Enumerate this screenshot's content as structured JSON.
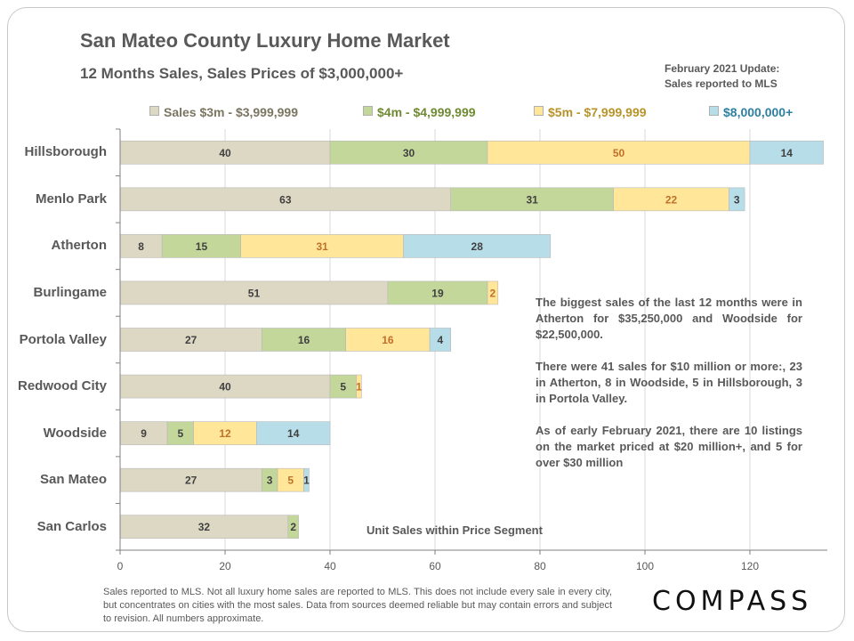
{
  "header": {
    "title": "San Mateo County Luxury Home Market",
    "subtitle": "12 Months Sales, Sales Prices of $3,000,000+",
    "update_line1": "February 2021  Update:",
    "update_line2": "Sales reported to MLS"
  },
  "colors": {
    "segment_fills": [
      "#DDD8C4",
      "#C4D79B",
      "#FFE699",
      "#B7DDE8"
    ],
    "segment_label_colors": [
      "#404040",
      "#404040",
      "#C0702A",
      "#404040"
    ],
    "legend_text_colors": [
      "#7A7560",
      "#6F8A32",
      "#B8932A",
      "#2F7FA0"
    ],
    "gridline": "#D9D9D9",
    "axis": "#808080"
  },
  "chart_data": {
    "type": "bar",
    "orientation": "horizontal",
    "stacked": true,
    "title": "San Mateo County Luxury Home Market",
    "subtitle": "12 Months Sales, Sales Prices of $3,000,000+",
    "xlabel": "Unit Sales within Price Segment",
    "ylabel": "",
    "xlim": [
      0,
      134
    ],
    "xticks": [
      0,
      20,
      40,
      60,
      80,
      100,
      120
    ],
    "grid": true,
    "legend_position": "top",
    "categories": [
      "Hillsborough",
      "Menlo Park",
      "Atherton",
      "Burlingame",
      "Portola Valley",
      "Redwood City",
      "Woodside",
      "San Mateo",
      "San Carlos"
    ],
    "series": [
      {
        "name": "Sales $3m - $3,999,999",
        "values": [
          40,
          63,
          8,
          51,
          27,
          40,
          9,
          27,
          32
        ]
      },
      {
        "name": "$4m - $4,999,999",
        "values": [
          30,
          31,
          15,
          19,
          16,
          5,
          5,
          3,
          2
        ]
      },
      {
        "name": "$5m - $7,999,999",
        "values": [
          50,
          22,
          31,
          2,
          16,
          1,
          12,
          5,
          0
        ]
      },
      {
        "name": "$8,000,000+",
        "values": [
          14,
          3,
          28,
          0,
          4,
          0,
          14,
          1,
          0
        ]
      }
    ]
  },
  "annotation": {
    "paragraphs": [
      "The biggest sales of the last 12 months were in Atherton for $35,250,000 and Woodside for $22,500,000.",
      "There were 41 sales for $10 million or more:, 23 in Atherton, 8 in Woodside, 5 in Hillsborough, 3 in Portola Valley.",
      "As of early February 2021, there are 10 listings on the market priced at $20 million+, and 5 for over $30 million"
    ]
  },
  "footnote": "Sales reported to MLS. Not all luxury home sales are reported to MLS. This does not include every sale in every city, but concentrates on cities with the most sales. Data from sources deemed reliable but may contain errors and subject to revision. All numbers approximate.",
  "brand": {
    "name": "COMPASS"
  }
}
